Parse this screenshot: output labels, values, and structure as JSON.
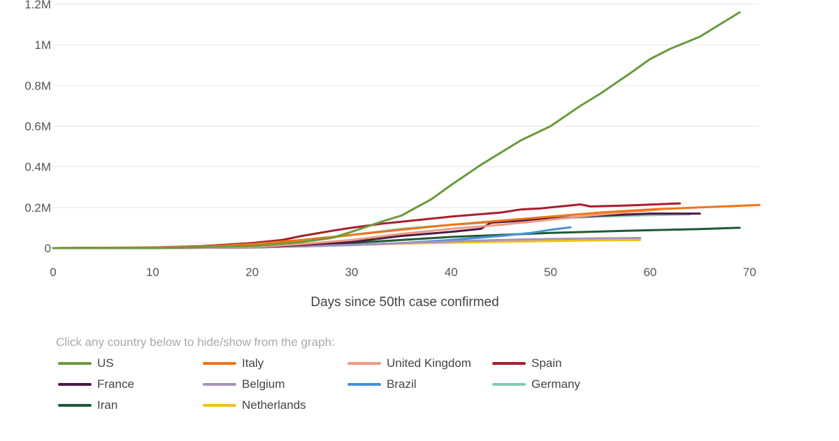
{
  "chart_data": {
    "type": "line",
    "xlabel": "Days since 50th case confirmed",
    "ylabel": "",
    "xlim": [
      0,
      71
    ],
    "ylim": [
      0,
      1200000
    ],
    "x_ticks": [
      0,
      10,
      20,
      30,
      40,
      50,
      60,
      70
    ],
    "y_ticks": [
      0,
      200000,
      400000,
      600000,
      800000,
      1000000,
      1200000
    ],
    "x_tick_labels": [
      "0",
      "10",
      "20",
      "30",
      "40",
      "50",
      "60",
      "70"
    ],
    "y_tick_labels": [
      "0",
      "0.2M",
      "0.4M",
      "0.6M",
      "0.8M",
      "1M",
      "1.2M"
    ],
    "grid": "horizontal",
    "legend_position": "bottom",
    "series": [
      {
        "name": "US",
        "color": "#6a9a3c",
        "x": [
          0,
          10,
          15,
          20,
          25,
          28,
          30,
          33,
          35,
          38,
          40,
          43,
          45,
          47,
          50,
          53,
          55,
          58,
          60,
          62,
          65,
          69
        ],
        "y": [
          0,
          0,
          5000,
          10000,
          30000,
          50000,
          80000,
          130000,
          160000,
          240000,
          310000,
          410000,
          470000,
          530000,
          600000,
          700000,
          760000,
          860000,
          930000,
          980000,
          1040000,
          1160000
        ]
      },
      {
        "name": "Italy",
        "color": "#f07417",
        "x": [
          0,
          10,
          15,
          20,
          25,
          30,
          35,
          40,
          45,
          50,
          55,
          60,
          65,
          71
        ],
        "y": [
          0,
          2000,
          8000,
          20000,
          40000,
          65000,
          90000,
          115000,
          135000,
          155000,
          175000,
          190000,
          200000,
          212000
        ]
      },
      {
        "name": "United Kingdom",
        "color": "#ef9a7f",
        "x": [
          0,
          10,
          20,
          25,
          30,
          35,
          40,
          45,
          50,
          55,
          61
        ],
        "y": [
          0,
          1000,
          5000,
          20000,
          40000,
          70000,
          95000,
          115000,
          140000,
          165000,
          190000
        ]
      },
      {
        "name": "Spain",
        "color": "#a81e2d",
        "x": [
          0,
          10,
          15,
          20,
          23,
          25,
          28,
          30,
          33,
          35,
          40,
          45,
          47,
          49,
          50,
          53,
          54,
          58,
          63
        ],
        "y": [
          0,
          3000,
          10000,
          25000,
          40000,
          60000,
          85000,
          100000,
          120000,
          130000,
          155000,
          175000,
          190000,
          195000,
          200000,
          215000,
          205000,
          210000,
          220000
        ]
      },
      {
        "name": "France",
        "color": "#4d1945",
        "x": [
          0,
          10,
          20,
          25,
          30,
          35,
          40,
          43,
          44,
          50,
          55,
          60,
          65
        ],
        "y": [
          0,
          1000,
          5000,
          15000,
          30000,
          60000,
          80000,
          95000,
          125000,
          145000,
          160000,
          170000,
          170000
        ]
      },
      {
        "name": "Belgium",
        "color": "#a593c2",
        "x": [
          0,
          10,
          20,
          30,
          35,
          40,
          45,
          50,
          55,
          59
        ],
        "y": [
          0,
          500,
          3000,
          15000,
          25000,
          33000,
          40000,
          45000,
          48000,
          50000
        ]
      },
      {
        "name": "Brazil",
        "color": "#4a90d6",
        "x": [
          0,
          10,
          20,
          30,
          35,
          40,
          45,
          48,
          50,
          52
        ],
        "y": [
          0,
          500,
          3000,
          15000,
          25000,
          40000,
          60000,
          75000,
          90000,
          102000
        ]
      },
      {
        "name": "Germany",
        "color": "#83c8b8",
        "x": [
          0,
          10,
          20,
          25,
          30,
          35,
          40,
          45,
          50,
          55,
          60,
          64
        ],
        "y": [
          0,
          1000,
          10000,
          30000,
          65000,
          95000,
          115000,
          130000,
          145000,
          155000,
          162000,
          166000
        ]
      },
      {
        "name": "Iran",
        "color": "#1f5a36",
        "x": [
          0,
          10,
          20,
          25,
          30,
          35,
          40,
          45,
          50,
          55,
          60,
          65,
          69
        ],
        "y": [
          0,
          2000,
          8000,
          15000,
          25000,
          40000,
          55000,
          65000,
          75000,
          82000,
          88000,
          94000,
          100000
        ]
      },
      {
        "name": "Netherlands",
        "color": "#ecc119",
        "x": [
          0,
          10,
          20,
          25,
          30,
          35,
          40,
          45,
          50,
          55,
          59
        ],
        "y": [
          0,
          300,
          2000,
          8000,
          15000,
          22000,
          27000,
          31000,
          35000,
          38000,
          40000
        ]
      }
    ]
  },
  "legend": {
    "hint": "Click any country below to hide/show from the graph:"
  }
}
